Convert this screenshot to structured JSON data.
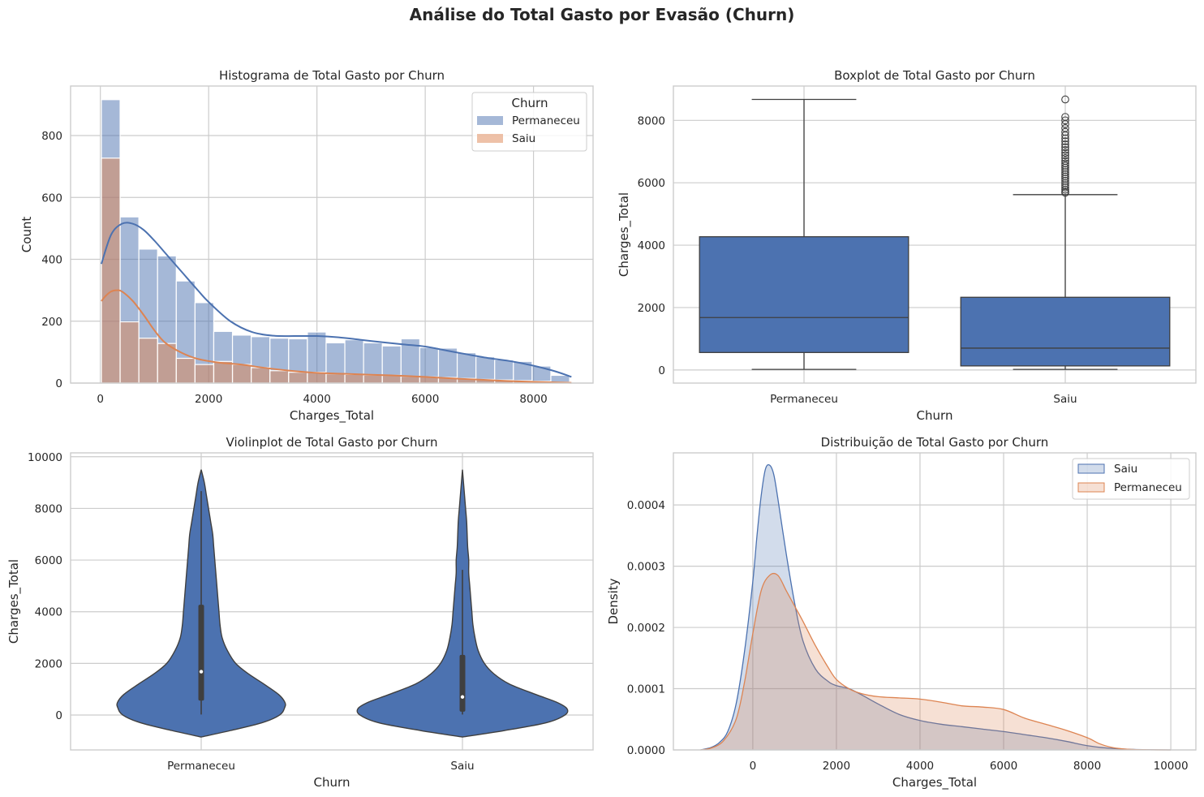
{
  "figure": {
    "suptitle": "Análise do Total Gasto por Evasão (Churn)"
  },
  "colors": {
    "permaneceu": "#4c72b0",
    "saiu": "#dd8452",
    "line": "#3f3f3f",
    "grid": "#cccccc"
  },
  "chart_data": [
    {
      "type": "bar",
      "subtype": "histogram_with_kde",
      "title": "Histograma de Total Gasto por Churn",
      "xlabel": "Charges_Total",
      "ylabel": "Count",
      "xlim": [
        -550,
        9100
      ],
      "ylim": [
        0,
        960
      ],
      "xticks": [
        0,
        2000,
        4000,
        6000,
        8000
      ],
      "yticks": [
        0,
        200,
        400,
        600,
        800
      ],
      "bin_edges": [
        18.8,
        364.7,
        710.6,
        1056.5,
        1402.4,
        1748.3,
        2094.2,
        2440.1,
        2786.0,
        3131.9,
        3477.8,
        3823.7,
        4169.6,
        4515.5,
        4861.4,
        5207.3,
        5553.2,
        5899.1,
        6245.0,
        6590.9,
        6936.8,
        7282.7,
        7628.6,
        7974.5,
        8320.4,
        8666.3
      ],
      "legend": {
        "title": "Churn",
        "position": "upper right",
        "entries": [
          "Permaneceu",
          "Saiu"
        ]
      },
      "series": [
        {
          "name": "Permaneceu",
          "counts": [
            916,
            537,
            433,
            411,
            330,
            260,
            167,
            155,
            150,
            145,
            143,
            165,
            130,
            140,
            130,
            120,
            143,
            115,
            113,
            98,
            85,
            75,
            70,
            55,
            25
          ],
          "kde_x": [
            18.8,
            200,
            400,
            600,
            800,
            1000,
            1200,
            1500,
            1800,
            2000,
            2400,
            2800,
            3200,
            3600,
            4000,
            4400,
            4800,
            5200,
            5600,
            6000,
            6400,
            6800,
            7200,
            7600,
            8000,
            8400,
            8700
          ],
          "kde_y": [
            385,
            480,
            515,
            515,
            495,
            460,
            420,
            360,
            300,
            262,
            200,
            165,
            153,
            152,
            152,
            148,
            140,
            132,
            125,
            118,
            105,
            92,
            80,
            70,
            56,
            38,
            20
          ]
        },
        {
          "name": "Saiu",
          "counts": [
            727,
            198,
            145,
            128,
            80,
            60,
            70,
            60,
            50,
            40,
            35,
            35,
            30,
            28,
            26,
            25,
            22,
            20,
            18,
            15,
            12,
            10,
            8,
            6,
            3
          ],
          "kde_x": [
            18.8,
            100,
            200,
            300,
            400,
            600,
            800,
            1000,
            1200,
            1500,
            1800,
            2200,
            2600,
            3000,
            3500,
            4000,
            4500,
            5000,
            5500,
            6000,
            6500,
            7000,
            7500,
            8000,
            8700
          ],
          "kde_y": [
            265,
            282,
            296,
            300,
            296,
            265,
            220,
            170,
            130,
            98,
            78,
            66,
            60,
            50,
            40,
            33,
            30,
            27,
            24,
            20,
            15,
            11,
            7,
            4,
            1
          ]
        }
      ]
    },
    {
      "type": "boxplot",
      "title": "Boxplot de Total Gasto por Churn",
      "xlabel": "Churn",
      "ylabel": "Charges_Total",
      "ylim": [
        -420,
        9100
      ],
      "yticks": [
        0,
        2000,
        4000,
        6000,
        8000
      ],
      "categories": [
        "Permaneceu",
        "Saiu"
      ],
      "boxes": [
        {
          "name": "Permaneceu",
          "whisker_low": 18.8,
          "q1": 560,
          "median": 1680,
          "q3": 4270,
          "whisker_high": 8670,
          "outliers": []
        },
        {
          "name": "Saiu",
          "whisker_low": 18.8,
          "q1": 130,
          "median": 700,
          "q3": 2330,
          "whisker_high": 5620,
          "outliers": [
            5680,
            5720,
            5780,
            5850,
            5920,
            5990,
            6060,
            6130,
            6200,
            6270,
            6340,
            6410,
            6480,
            6550,
            6620,
            6700,
            6790,
            6880,
            6960,
            7050,
            7140,
            7230,
            7330,
            7420,
            7520,
            7630,
            7750,
            7880,
            8000,
            8110,
            8670
          ]
        }
      ]
    },
    {
      "type": "violin",
      "title": "Violinplot de Total Gasto por Churn",
      "xlabel": "Churn",
      "ylabel": "Charges_Total",
      "ylim": [
        -1350,
        10150
      ],
      "yticks": [
        0,
        2000,
        4000,
        6000,
        8000,
        10000
      ],
      "categories": [
        "Permaneceu",
        "Saiu"
      ],
      "violins": [
        {
          "name": "Permaneceu",
          "y_min": -850,
          "y_max": 9500,
          "q1": 560,
          "median": 1680,
          "q3": 4270,
          "whisker_low": 18.8,
          "whisker_high": 8670,
          "profile_y": [
            -850,
            -600,
            -300,
            0,
            300,
            500,
            800,
            1200,
            1600,
            2000,
            2500,
            3000,
            3500,
            4000,
            4500,
            5000,
            5500,
            6000,
            6500,
            7000,
            7500,
            8000,
            8500,
            9000,
            9500
          ],
          "profile_halfwidth": [
            0.0,
            0.28,
            0.58,
            0.75,
            0.8,
            0.8,
            0.74,
            0.6,
            0.45,
            0.33,
            0.25,
            0.2,
            0.18,
            0.17,
            0.16,
            0.15,
            0.14,
            0.13,
            0.12,
            0.11,
            0.09,
            0.07,
            0.05,
            0.03,
            0.0
          ]
        },
        {
          "name": "Saiu",
          "y_min": -850,
          "y_max": 9500,
          "q1": 130,
          "median": 700,
          "q3": 2330,
          "whisker_low": 18.8,
          "whisker_high": 5620,
          "profile_y": [
            -850,
            -600,
            -300,
            0,
            250,
            500,
            800,
            1200,
            1600,
            2000,
            2500,
            3000,
            3500,
            4000,
            4500,
            5000,
            5500,
            6000,
            6500,
            7000,
            7500,
            8000,
            8500,
            9000,
            9500
          ],
          "profile_halfwidth": [
            0.0,
            0.4,
            0.8,
            0.98,
            1.0,
            0.9,
            0.7,
            0.45,
            0.3,
            0.21,
            0.15,
            0.12,
            0.1,
            0.09,
            0.08,
            0.07,
            0.06,
            0.06,
            0.05,
            0.045,
            0.04,
            0.03,
            0.02,
            0.01,
            0.0
          ]
        }
      ]
    },
    {
      "type": "area",
      "subtype": "kde",
      "title": "Distribuição de Total Gasto por Churn",
      "xlabel": "Charges_Total",
      "ylabel": "Density",
      "xlim": [
        -1900,
        10600
      ],
      "ylim": [
        0,
        0.000485
      ],
      "xticks": [
        0,
        2000,
        4000,
        6000,
        8000,
        10000
      ],
      "yticks": [
        0.0,
        0.0001,
        0.0002,
        0.0003,
        0.0004
      ],
      "ytick_labels": [
        "0.0000",
        "0.0001",
        "0.0002",
        "0.0003",
        "0.0004"
      ],
      "legend": {
        "position": "upper right",
        "entries": [
          "Saiu",
          "Permaneceu"
        ]
      },
      "series": [
        {
          "name": "Saiu",
          "x": [
            -1250,
            -1000,
            -800,
            -600,
            -400,
            -200,
            0,
            100,
            200,
            300,
            400,
            500,
            600,
            800,
            1000,
            1200,
            1500,
            1800,
            2000,
            2300,
            2600,
            3000,
            3500,
            4000,
            4500,
            5000,
            5500,
            6000,
            6500,
            7000,
            7500,
            8000,
            8500,
            9000,
            9500,
            10000
          ],
          "y": [
            0.0,
            4e-06,
            1.2e-05,
            3e-05,
            7.5e-05,
            0.00016,
            0.000275,
            0.00035,
            0.000415,
            0.000458,
            0.000465,
            0.00045,
            0.00041,
            0.00032,
            0.00024,
            0.000178,
            0.000132,
            0.000112,
            0.000105,
            0.0001,
            9e-05,
            7.5e-05,
            5.8e-05,
            4.8e-05,
            4.2e-05,
            3.8e-05,
            3.4e-05,
            3e-05,
            2.5e-05,
            2e-05,
            1.4e-05,
            7e-06,
            3e-06,
            1e-06,
            3e-07,
            0.0
          ]
        },
        {
          "name": "Permaneceu",
          "x": [
            -1250,
            -1000,
            -700,
            -400,
            -200,
            0,
            200,
            400,
            600,
            800,
            1000,
            1200,
            1500,
            1800,
            2000,
            2300,
            2600,
            3000,
            3500,
            4000,
            4500,
            5000,
            5500,
            6000,
            6500,
            7000,
            7500,
            8000,
            8300,
            8600,
            9000,
            9500,
            10000
          ],
          "y": [
            0.0,
            3e-06,
            1.5e-05,
            5e-05,
            0.00011,
            0.00019,
            0.00026,
            0.000285,
            0.000285,
            0.00026,
            0.000235,
            0.00021,
            0.00017,
            0.000135,
            0.000115,
            0.0001,
            9.2e-05,
            8.7e-05,
            8.5e-05,
            8.3e-05,
            7.8e-05,
            7.2e-05,
            7e-05,
            6.6e-05,
            5.2e-05,
            4.2e-05,
            3.2e-05,
            2e-05,
            1e-05,
            4e-06,
            1e-06,
            2e-07,
            0.0
          ]
        }
      ]
    }
  ]
}
